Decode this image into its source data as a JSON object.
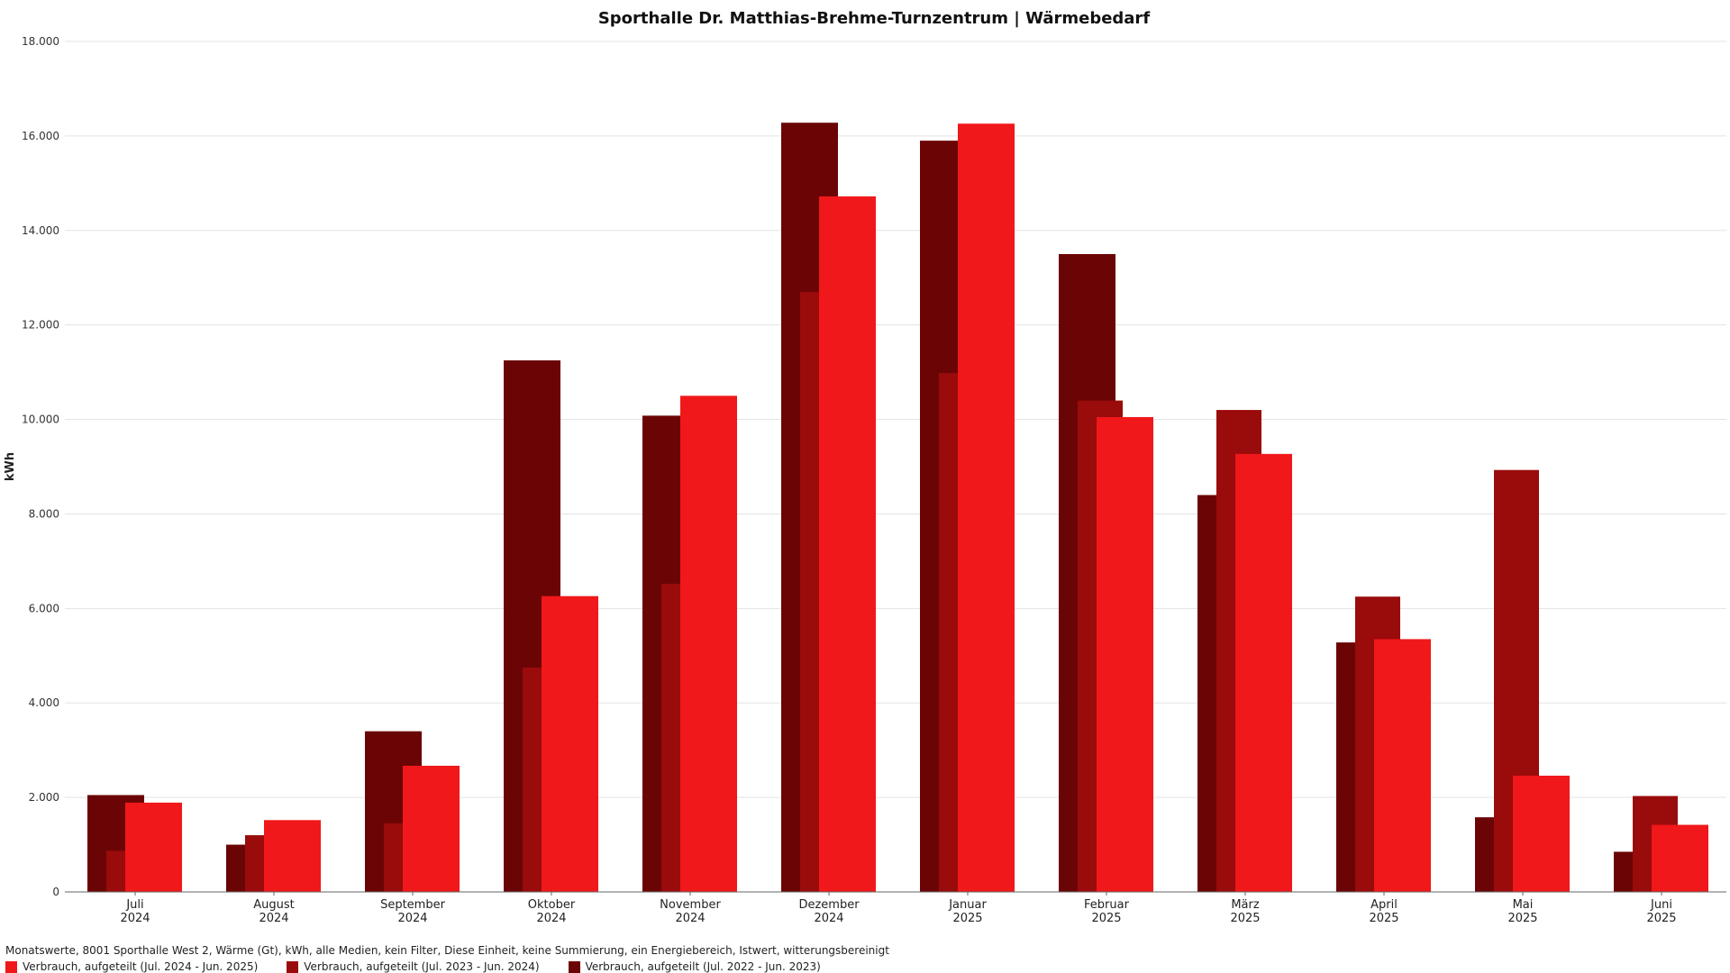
{
  "chart_data": {
    "type": "bar",
    "title": "Sporthalle Dr. Matthias-Brehme-Turnzentrum | Wärmebedarf",
    "ylabel": "kWh",
    "xlabel": "",
    "ylim": [
      0,
      18000
    ],
    "yticks": [
      0,
      2000,
      4000,
      6000,
      8000,
      10000,
      12000,
      14000,
      16000,
      18000
    ],
    "ytick_labels": [
      "0",
      "2.000",
      "4.000",
      "6.000",
      "8.000",
      "10.000",
      "12.000",
      "14.000",
      "16.000",
      "18.000"
    ],
    "grid": true,
    "legend_position": "bottom-left",
    "categories": [
      {
        "month": "Juli",
        "year": "2024"
      },
      {
        "month": "August",
        "year": "2024"
      },
      {
        "month": "September",
        "year": "2024"
      },
      {
        "month": "Oktober",
        "year": "2024"
      },
      {
        "month": "November",
        "year": "2024"
      },
      {
        "month": "Dezember",
        "year": "2024"
      },
      {
        "month": "Januar",
        "year": "2025"
      },
      {
        "month": "Februar",
        "year": "2025"
      },
      {
        "month": "März",
        "year": "2025"
      },
      {
        "month": "April",
        "year": "2025"
      },
      {
        "month": "Mai",
        "year": "2025"
      },
      {
        "month": "Juni",
        "year": "2025"
      }
    ],
    "series": [
      {
        "name": "Verbrauch, aufgeteilt (Jul. 2022 - Jun. 2023)",
        "color": "#6b0505",
        "values": [
          2050,
          1000,
          3400,
          11250,
          10080,
          16280,
          15900,
          13500,
          8400,
          5280,
          1580,
          850
        ]
      },
      {
        "name": "Verbrauch, aufgeteilt (Jul. 2023 - Jun. 2024)",
        "color": "#9a0b0b",
        "values": [
          870,
          1200,
          1450,
          4750,
          6520,
          12700,
          10980,
          10400,
          10200,
          6250,
          8930,
          2030
        ]
      },
      {
        "name": "Verbrauch, aufgeteilt (Jul. 2024 - Jun. 2025)",
        "color": "#f0181a",
        "values": [
          1890,
          1520,
          2670,
          6260,
          10500,
          14720,
          16260,
          10050,
          9270,
          5350,
          2460,
          1420
        ]
      }
    ]
  },
  "footer": {
    "text": "Monatswerte, 8001 Sporthalle West 2, Wärme (Gt), kWh, alle Medien, kein Filter, Diese Einheit, keine Summierung, ein Energiebereich, Istwert, witterungsbereinigt"
  },
  "legend": {
    "items": [
      {
        "label": "Verbrauch, aufgeteilt (Jul. 2024 - Jun. 2025)",
        "color": "#f0181a"
      },
      {
        "label": "Verbrauch, aufgeteilt (Jul. 2023 - Jun. 2024)",
        "color": "#9a0b0b"
      },
      {
        "label": "Verbrauch, aufgeteilt (Jul. 2022 - Jun. 2023)",
        "color": "#6b0505"
      }
    ]
  }
}
